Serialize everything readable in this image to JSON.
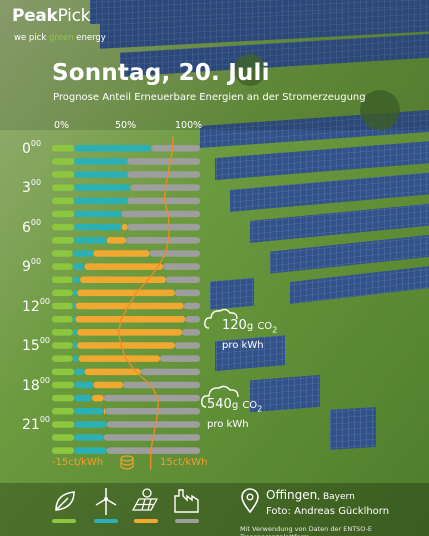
{
  "brand": {
    "name_bold": "Peak",
    "name_light": "Pick",
    "tagline_pre": "we pick ",
    "tagline_green": "green",
    "tagline_post": " energy"
  },
  "header": {
    "title": "Sonntag, 20. Juli",
    "subtitle": "Prognose Anteil Erneuerbare Energien an der Stromerzeugung"
  },
  "colors": {
    "biomass": "#8dc63f",
    "wind": "#2bb0b5",
    "solar": "#f0a830",
    "conventional": "#9e9e9e",
    "price_line": "#f08a2a"
  },
  "chart_data": {
    "type": "bar",
    "orientation": "horizontal-stacked",
    "x_ticks": [
      "0%",
      "50%",
      "100%"
    ],
    "xlim": [
      0,
      100
    ],
    "hour_labels": [
      {
        "hour": "0",
        "sup": "00",
        "slot": 0
      },
      {
        "hour": "3",
        "sup": "00",
        "slot": 3
      },
      {
        "hour": "6",
        "sup": "00",
        "slot": 6
      },
      {
        "hour": "9",
        "sup": "00",
        "slot": 9
      },
      {
        "hour": "12",
        "sup": "00",
        "slot": 12
      },
      {
        "hour": "15",
        "sup": "00",
        "slot": 15
      },
      {
        "hour": "18",
        "sup": "00",
        "slot": 18
      },
      {
        "hour": "21",
        "sup": "00",
        "slot": 21
      }
    ],
    "series_names": [
      "Biomasse",
      "Wind",
      "Solar",
      "Konventionell"
    ],
    "hours": [
      {
        "biomass": 15,
        "wind": 52,
        "solar": 0,
        "other": 33
      },
      {
        "biomass": 15,
        "wind": 36,
        "solar": 0,
        "other": 49
      },
      {
        "biomass": 15,
        "wind": 36,
        "solar": 0,
        "other": 49
      },
      {
        "biomass": 15,
        "wind": 38,
        "solar": 0,
        "other": 47
      },
      {
        "biomass": 15,
        "wind": 36,
        "solar": 0,
        "other": 49
      },
      {
        "biomass": 15,
        "wind": 32,
        "solar": 0,
        "other": 53
      },
      {
        "biomass": 15,
        "wind": 32,
        "solar": 4,
        "other": 49
      },
      {
        "biomass": 15,
        "wind": 22,
        "solar": 13,
        "other": 50
      },
      {
        "biomass": 14,
        "wind": 14,
        "solar": 38,
        "other": 34
      },
      {
        "biomass": 14,
        "wind": 8,
        "solar": 53,
        "other": 25
      },
      {
        "biomass": 14,
        "wind": 5,
        "solar": 58,
        "other": 23
      },
      {
        "biomass": 14,
        "wind": 3,
        "solar": 66,
        "other": 17
      },
      {
        "biomass": 14,
        "wind": 2,
        "solar": 73,
        "other": 11
      },
      {
        "biomass": 14,
        "wind": 2,
        "solar": 74,
        "other": 10
      },
      {
        "biomass": 14,
        "wind": 3,
        "solar": 71,
        "other": 12
      },
      {
        "biomass": 14,
        "wind": 3,
        "solar": 66,
        "other": 17
      },
      {
        "biomass": 14,
        "wind": 4,
        "solar": 55,
        "other": 27
      },
      {
        "biomass": 15,
        "wind": 7,
        "solar": 38,
        "other": 40
      },
      {
        "biomass": 15,
        "wind": 13,
        "solar": 20,
        "other": 52
      },
      {
        "biomass": 15,
        "wind": 12,
        "solar": 8,
        "other": 65
      },
      {
        "biomass": 15,
        "wind": 20,
        "solar": 1,
        "other": 64
      },
      {
        "biomass": 15,
        "wind": 22,
        "solar": 0,
        "other": 63
      },
      {
        "biomass": 15,
        "wind": 20,
        "solar": 0,
        "other": 65
      },
      {
        "biomass": 15,
        "wind": 22,
        "solar": 0,
        "other": 63
      }
    ],
    "price_ct_kwh": [
      9.5,
      9,
      8.5,
      8,
      7.8,
      8.5,
      8.8,
      8.6,
      8,
      6.5,
      4.5,
      2,
      0.5,
      -1,
      -1.5,
      -1,
      0,
      2,
      5,
      6.5,
      6.5,
      6,
      5.5,
      5
    ],
    "price_axis": {
      "min_label": "-15ct/kWh",
      "max_label": "15ct/kWh",
      "min": -15,
      "max": 15
    },
    "annotations": [
      {
        "value": "120",
        "unit": "g",
        "gas": "CO",
        "sub": "2",
        "per": "pro kWh"
      },
      {
        "value": "540",
        "unit": "g",
        "gas": "CO",
        "sub": "2",
        "per": "pro kWh"
      }
    ]
  },
  "footer": {
    "location": "Offingen",
    "region": ", Bayern",
    "photo_credit": "Foto: Andreas Gücklhorn",
    "source": "Mit Verwendung von Daten der ENTSO-E Transparenzplattform",
    "legend_icons": [
      "leaf-icon",
      "wind-turbine-icon",
      "solar-panel-icon",
      "factory-icon"
    ]
  }
}
